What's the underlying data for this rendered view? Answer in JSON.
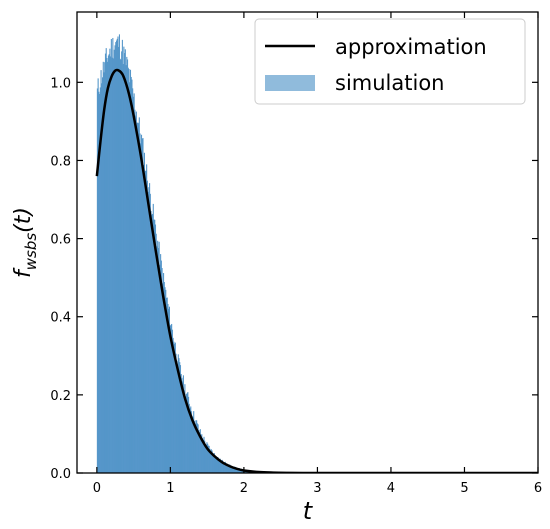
{
  "chart_data": {
    "type": "area",
    "xlabel": "t",
    "ylabel_main": "f",
    "ylabel_sub": "wsbs",
    "ylabel_arg": "(t)",
    "xlim": [
      -0.27,
      6.0
    ],
    "ylim": [
      0.0,
      1.18
    ],
    "xticks": [
      0,
      1,
      2,
      3,
      4,
      5,
      6
    ],
    "yticks": [
      0.0,
      0.2,
      0.4,
      0.6,
      0.8,
      1.0
    ],
    "ytick_labels": [
      "0.0",
      "0.2",
      "0.4",
      "0.6",
      "0.8",
      "1.0"
    ],
    "xtick_labels": [
      "0",
      "1",
      "2",
      "3",
      "4",
      "5",
      "6"
    ],
    "grid": false,
    "legend_position": "top-right",
    "series": [
      {
        "name": "approximation",
        "kind": "line",
        "color": "#000000",
        "x": [
          0.0,
          0.05,
          0.1,
          0.15,
          0.2,
          0.25,
          0.3,
          0.35,
          0.4,
          0.45,
          0.5,
          0.6,
          0.7,
          0.8,
          0.9,
          1.0,
          1.1,
          1.2,
          1.3,
          1.4,
          1.5,
          1.6,
          1.7,
          1.8,
          1.9,
          2.0,
          2.2,
          2.4,
          2.6,
          2.8,
          3.0,
          3.5,
          4.0,
          5.0,
          6.0
        ],
        "y": [
          0.76,
          0.85,
          0.93,
          0.985,
          1.015,
          1.03,
          1.03,
          1.02,
          0.995,
          0.96,
          0.915,
          0.81,
          0.69,
          0.57,
          0.455,
          0.35,
          0.265,
          0.19,
          0.135,
          0.095,
          0.063,
          0.043,
          0.028,
          0.018,
          0.011,
          0.0065,
          0.0025,
          0.001,
          0.0004,
          0.00015,
          5e-05,
          0.0,
          0.0,
          0.0,
          0.0
        ]
      },
      {
        "name": "simulation",
        "kind": "histogram",
        "color": "#5596c9",
        "x": [
          0.0,
          0.05,
          0.1,
          0.15,
          0.2,
          0.25,
          0.3,
          0.35,
          0.4,
          0.45,
          0.5,
          0.6,
          0.7,
          0.8,
          0.9,
          1.0,
          1.1,
          1.2,
          1.3,
          1.4,
          1.5,
          1.6,
          1.7,
          1.8,
          1.9,
          2.0,
          2.1,
          2.2,
          2.3,
          2.4,
          2.5,
          2.6,
          2.8,
          3.0
        ],
        "y": [
          0.97,
          1.01,
          1.04,
          1.07,
          1.09,
          1.1,
          1.1,
          1.08,
          1.05,
          1.01,
          0.96,
          0.86,
          0.74,
          0.62,
          0.5,
          0.39,
          0.29,
          0.215,
          0.155,
          0.105,
          0.07,
          0.046,
          0.029,
          0.018,
          0.011,
          0.0065,
          0.004,
          0.0025,
          0.0015,
          0.0009,
          0.0005,
          0.0003,
          0.0001,
          0.0
        ]
      }
    ]
  }
}
